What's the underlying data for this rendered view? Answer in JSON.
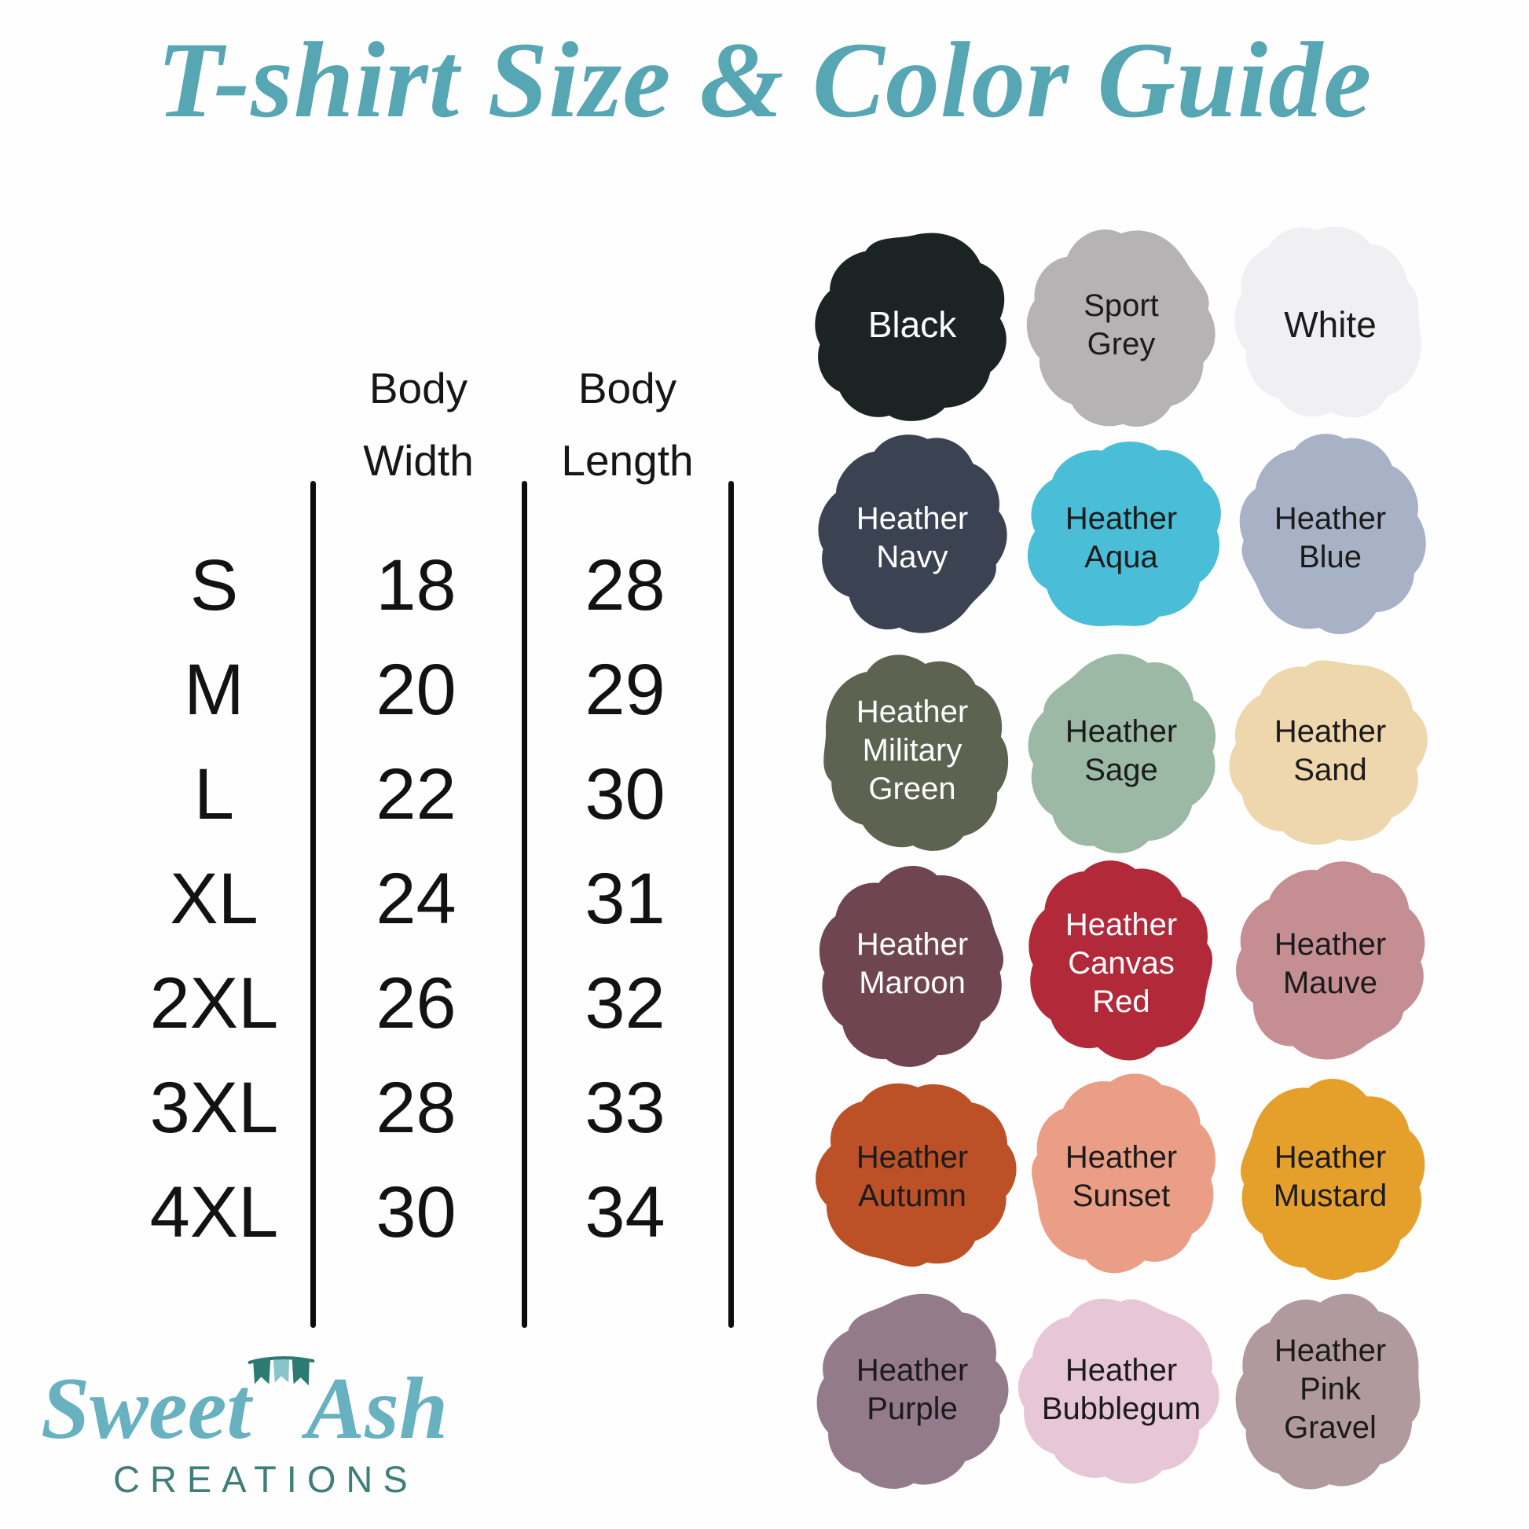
{
  "title": "T-shirt Size & Color Guide",
  "size_table": {
    "headers": [
      {
        "line1": "Body",
        "line2": "Width"
      },
      {
        "line1": "Body",
        "line2": "Length"
      }
    ],
    "rows": [
      {
        "size": "S",
        "body_width": "18",
        "body_length": "28"
      },
      {
        "size": "M",
        "body_width": "20",
        "body_length": "29"
      },
      {
        "size": "L",
        "body_width": "22",
        "body_length": "30"
      },
      {
        "size": "XL",
        "body_width": "24",
        "body_length": "31"
      },
      {
        "size": "2XL",
        "body_width": "26",
        "body_length": "32"
      },
      {
        "size": "3XL",
        "body_width": "28",
        "body_length": "33"
      },
      {
        "size": "4XL",
        "body_width": "30",
        "body_length": "34"
      }
    ]
  },
  "color_guide": {
    "swatches": [
      {
        "name": "Black",
        "lines": [
          "Black"
        ],
        "hex": "#1c2423",
        "text_color": "#ffffff"
      },
      {
        "name": "Sport Grey",
        "lines": [
          "Sport",
          "Grey"
        ],
        "hex": "#b5b3b4",
        "text_color": "#1b1b1b"
      },
      {
        "name": "White",
        "lines": [
          "White"
        ],
        "hex": "#f0f0f2",
        "text_color": "#1b1b1b"
      },
      {
        "name": "Heather Navy",
        "lines": [
          "Heather",
          "Navy"
        ],
        "hex": "#3b4353",
        "text_color": "#ffffff"
      },
      {
        "name": "Heather Aqua",
        "lines": [
          "Heather",
          "Aqua"
        ],
        "hex": "#49bed6",
        "text_color": "#1b1b1b"
      },
      {
        "name": "Heather Blue",
        "lines": [
          "Heather",
          "Blue"
        ],
        "hex": "#a8b2c6",
        "text_color": "#1b1b1b"
      },
      {
        "name": "Heather Military Green",
        "lines": [
          "Heather",
          "Military",
          "Green"
        ],
        "hex": "#5e6251",
        "text_color": "#ffffff"
      },
      {
        "name": "Heather Sage",
        "lines": [
          "Heather",
          "Sage"
        ],
        "hex": "#9cb9a5",
        "text_color": "#1b1b1b"
      },
      {
        "name": "Heather Sand",
        "lines": [
          "Heather",
          "Sand"
        ],
        "hex": "#eed6ad",
        "text_color": "#1b1b1b"
      },
      {
        "name": "Heather Maroon",
        "lines": [
          "Heather",
          "Maroon"
        ],
        "hex": "#6f4551",
        "text_color": "#ffffff"
      },
      {
        "name": "Heather Canvas Red",
        "lines": [
          "Heather",
          "Canvas",
          "Red"
        ],
        "hex": "#b2293a",
        "text_color": "#ffffff"
      },
      {
        "name": "Heather Mauve",
        "lines": [
          "Heather",
          "Mauve"
        ],
        "hex": "#c58e93",
        "text_color": "#1b1b1b"
      },
      {
        "name": "Heather Autumn",
        "lines": [
          "Heather",
          "Autumn"
        ],
        "hex": "#bc5127",
        "text_color": "#1b1b1b"
      },
      {
        "name": "Heather Sunset",
        "lines": [
          "Heather",
          "Sunset"
        ],
        "hex": "#eb9e86",
        "text_color": "#1b1b1b"
      },
      {
        "name": "Heather Mustard",
        "lines": [
          "Heather",
          "Mustard"
        ],
        "hex": "#e5a02c",
        "text_color": "#1b1b1b"
      },
      {
        "name": "Heather Purple",
        "lines": [
          "Heather",
          "Purple"
        ],
        "hex": "#947b8c",
        "text_color": "#1b1b1b"
      },
      {
        "name": "Heather Bubblegum",
        "lines": [
          "Heather",
          "Bubblegum"
        ],
        "hex": "#e6c6d7",
        "text_color": "#1b1b1b"
      },
      {
        "name": "Heather Pink Gravel",
        "lines": [
          "Heather",
          "Pink",
          "Gravel"
        ],
        "hex": "#b19a9e",
        "text_color": "#1b1b1b"
      }
    ]
  },
  "logo": {
    "script_first": "Sweet",
    "script_second": "Ash",
    "subtitle": "CREATIONS"
  },
  "brand_colors": {
    "title_teal": "#57a6b4",
    "logo_script_teal": "#68b1c1",
    "logo_subtitle_teal": "#3f7e7a",
    "banner_dark": "#2c7a72",
    "banner_light": "#87c5ca",
    "table_ink": "#0d0d0d"
  }
}
